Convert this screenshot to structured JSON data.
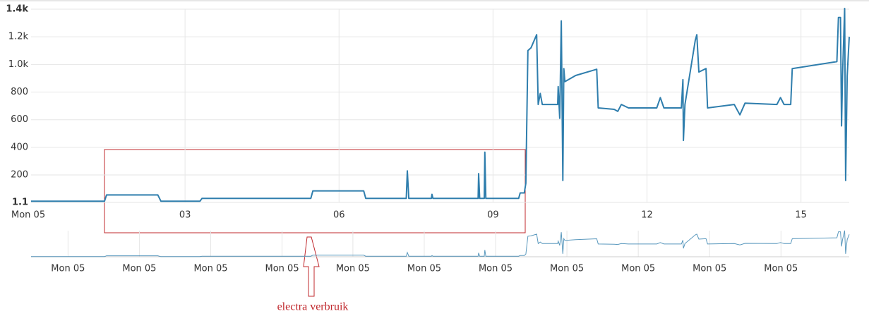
{
  "chart_data": {
    "type": "line",
    "color": "#2f7ead",
    "xlim": [
      0,
      15.94
    ],
    "ylim": [
      1.1,
      1400
    ],
    "xticks": [
      {
        "value": 0,
        "label": "Mon 05"
      },
      {
        "value": 3,
        "label": "03"
      },
      {
        "value": 6,
        "label": "06"
      },
      {
        "value": 9,
        "label": "09"
      },
      {
        "value": 12,
        "label": "12"
      },
      {
        "value": 15,
        "label": "15"
      }
    ],
    "yticks": [
      {
        "value": 1.1,
        "label": "1.1"
      },
      200,
      400,
      600,
      800,
      {
        "value": 1000,
        "label": "1.0k"
      },
      {
        "value": 1200,
        "label": "1.2k"
      },
      {
        "value": 1400,
        "label": "1.4k"
      }
    ],
    "grid": true,
    "x": [
      0,
      1.43,
      1.47,
      2.47,
      2.53,
      3.29,
      3.33,
      5.45,
      5.49,
      6.48,
      6.52,
      7.31,
      7.33,
      7.36,
      7.8,
      7.81,
      7.83,
      8.71,
      8.72,
      8.74,
      8.83,
      8.84,
      8.86,
      9.13,
      9.5,
      9.53,
      9.61,
      9.64,
      9.68,
      9.74,
      9.85,
      9.88,
      9.92,
      9.96,
      10.26,
      10.27,
      10.3,
      10.33,
      10.36,
      10.38,
      10.4,
      10.61,
      11.02,
      11.05,
      11.36,
      11.43,
      11.5,
      11.64,
      12.19,
      12.26,
      12.33,
      12.67,
      12.7,
      12.71,
      12.74,
      12.94,
      12.97,
      13.01,
      13.15,
      13.18,
      13.7,
      13.81,
      13.91,
      14.53,
      14.6,
      14.67,
      14.8,
      14.83,
      15.7,
      15.73,
      15.77,
      15.79,
      15.81,
      15.85,
      15.87,
      15.9,
      15.94
    ],
    "values": [
      10,
      10,
      55,
      55,
      10,
      10,
      30,
      30,
      85,
      85,
      30,
      30,
      230,
      30,
      30,
      60,
      30,
      30,
      210,
      30,
      30,
      365,
      30,
      30,
      30,
      70,
      70,
      140,
      1100,
      1120,
      1215,
      710,
      790,
      710,
      710,
      840,
      610,
      1315,
      160,
      970,
      875,
      920,
      965,
      685,
      675,
      660,
      710,
      685,
      685,
      760,
      685,
      685,
      890,
      450,
      710,
      1175,
      1215,
      945,
      970,
      685,
      710,
      635,
      720,
      710,
      760,
      710,
      710,
      970,
      1020,
      1340,
      1340,
      555,
      915,
      1405,
      160,
      915,
      1200
    ],
    "navigator_xticks": [
      {
        "value": 0.72,
        "label": "Mon 05"
      },
      {
        "value": 2.11,
        "label": "Mon 05"
      },
      {
        "value": 3.5,
        "label": "Mon 05"
      },
      {
        "value": 4.89,
        "label": "Mon 05"
      },
      {
        "value": 6.27,
        "label": "Mon 05"
      },
      {
        "value": 7.66,
        "label": "Mon 05"
      },
      {
        "value": 9.05,
        "label": "Mon 05"
      },
      {
        "value": 10.44,
        "label": "Mon 05"
      },
      {
        "value": 11.83,
        "label": "Mon 05"
      },
      {
        "value": 13.22,
        "label": "Mon 05"
      },
      {
        "value": 14.61,
        "label": "Mon 05"
      }
    ],
    "annotation": "electra verbruik"
  }
}
